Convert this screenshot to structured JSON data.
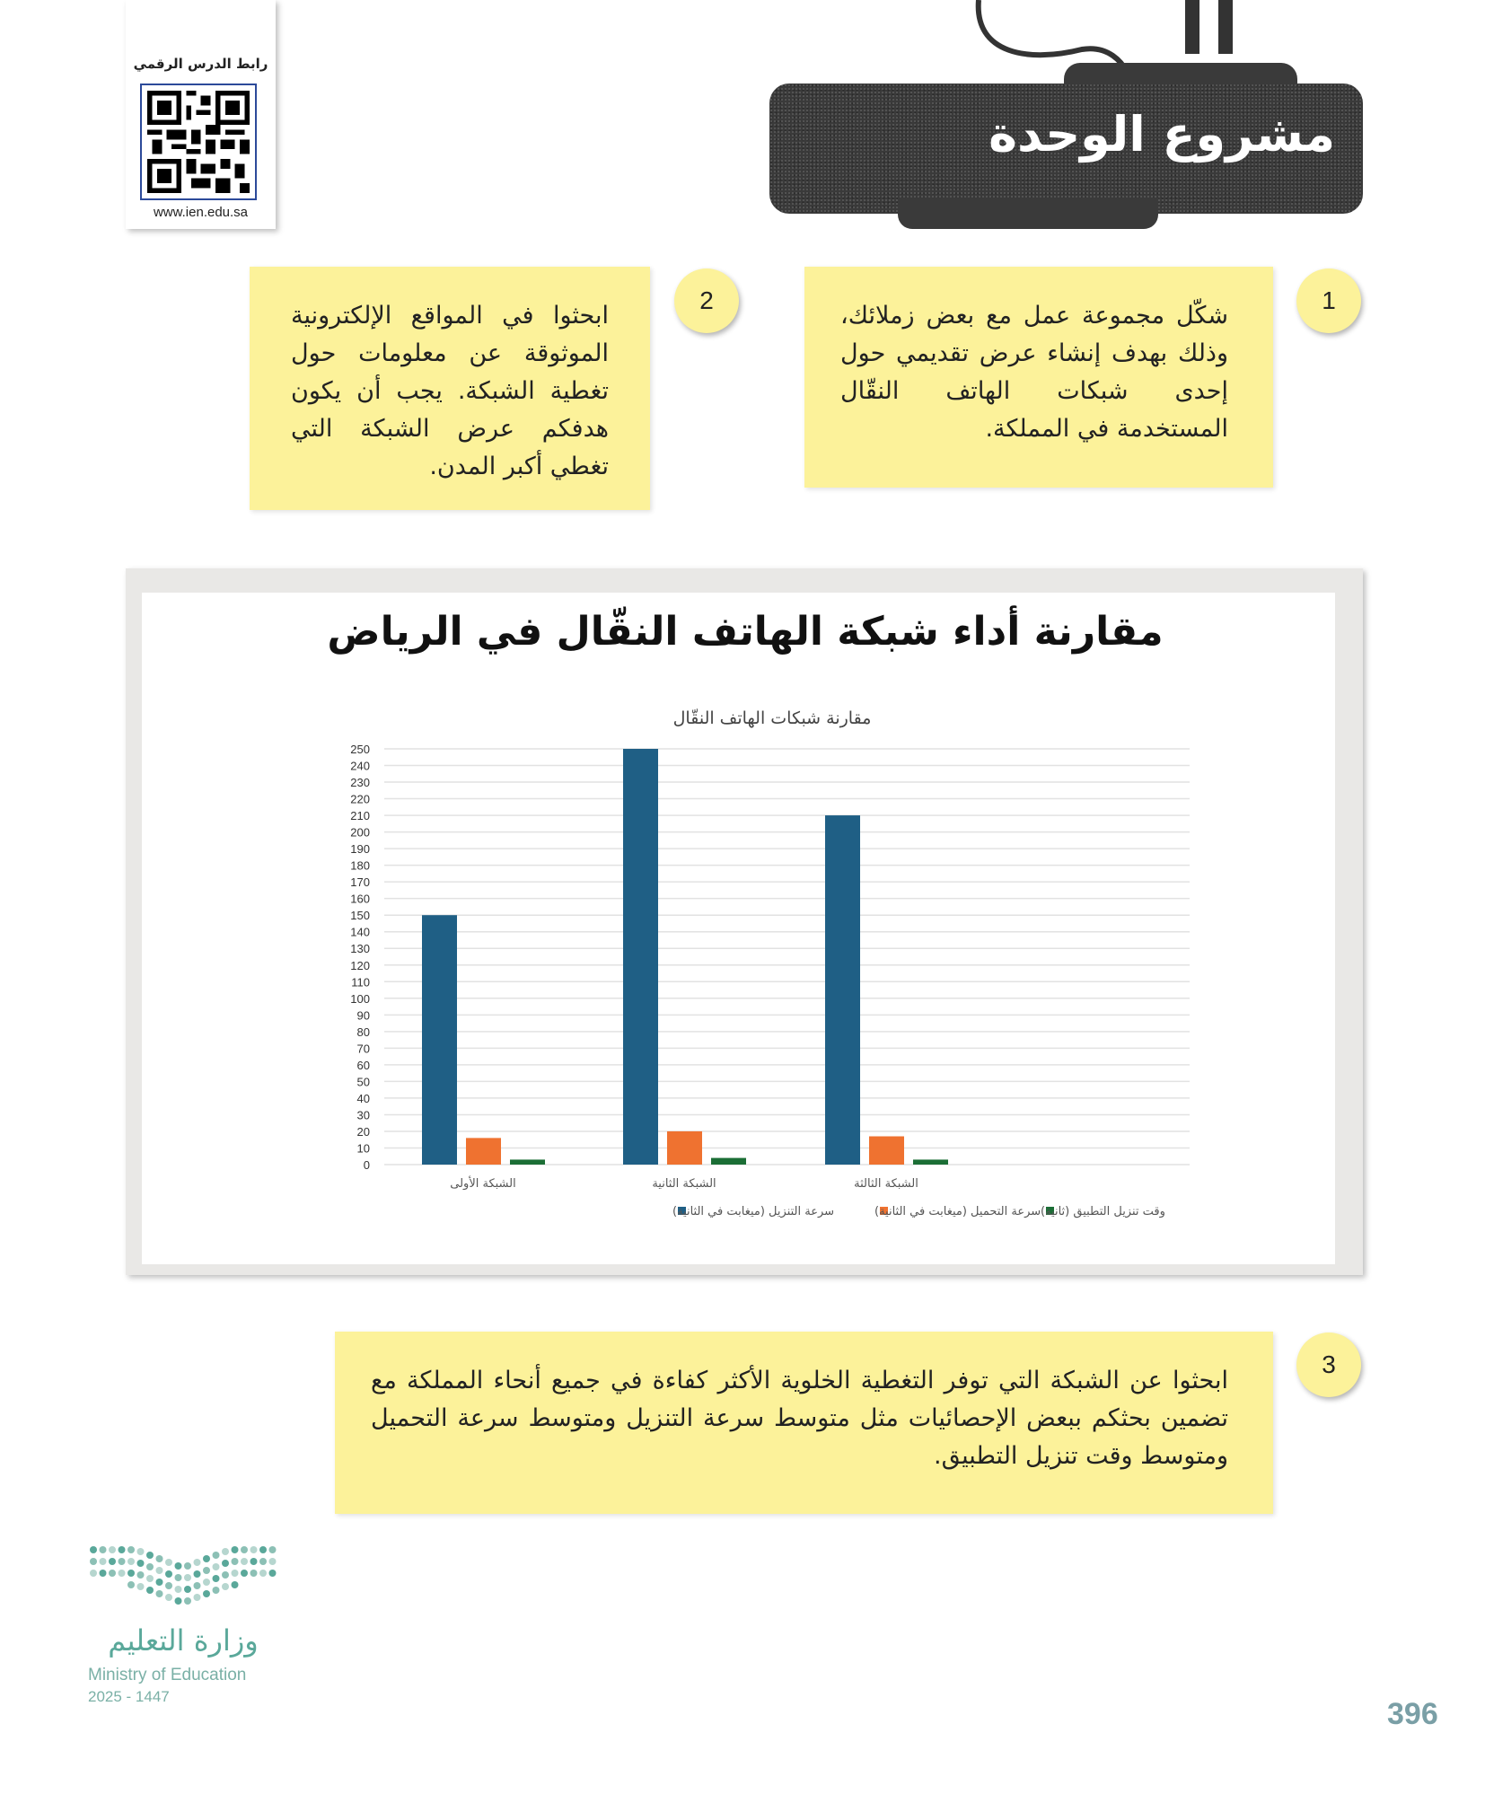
{
  "qr": {
    "label": "رابط الدرس الرقمي",
    "url": "www.ien.edu.sa"
  },
  "header": {
    "title": "مشروع الوحدة"
  },
  "steps": [
    {
      "number": "1",
      "text": "شكّل مجموعة عمل مع بعض زملائك، وذلك بهدف إنشاء عرض تقديمي حول إحدى شبكات الهاتف النقّال المستخدمة في المملكة."
    },
    {
      "number": "2",
      "text": "ابحثوا في المواقع الإلكترونية الموثوقة عن معلومات حول تغطية الشبكة. يجب أن يكون هدفكم عرض الشبكة التي تغطي أكبر المدن."
    },
    {
      "number": "3",
      "text": "ابحثوا عن الشبكة التي توفر التغطية الخلوية الأكثر كفاءة في جميع أنحاء المملكة مع تضمين بحثكم ببعض الإحصائيات مثل متوسط سرعة التنزيل ومتوسط سرعة التحميل ومتوسط وقت تنزيل التطبيق."
    }
  ],
  "chart_data": {
    "type": "bar",
    "title": "مقارنة أداء شبكة الهاتف النقّال في الرياض",
    "subtitle": "مقارنة شبكات الهاتف النقّال",
    "categories": [
      "الشبكة الأولى",
      "الشبكة الثانية",
      "الشبكة الثالثة"
    ],
    "series": [
      {
        "name": "سرعة التنزيل (ميغابت في الثانية)",
        "values": [
          150,
          250,
          210
        ],
        "color": "#1f5f85"
      },
      {
        "name": "سرعة التحميل (ميغابت في الثانية)",
        "values": [
          16,
          20,
          17
        ],
        "color": "#ef7230"
      },
      {
        "name": "وقت تنزيل التطبيق (ثانية)",
        "values": [
          3,
          4,
          3
        ],
        "color": "#1b6e35"
      }
    ],
    "ylim": [
      0,
      250
    ],
    "yticks": [
      0,
      10,
      20,
      30,
      40,
      50,
      60,
      70,
      80,
      90,
      100,
      110,
      120,
      130,
      140,
      150,
      160,
      170,
      180,
      190,
      200,
      210,
      220,
      230,
      240,
      250
    ],
    "grid": true,
    "legend": "bottom"
  },
  "footer": {
    "ministry_ar": "وزارة التعليم",
    "ministry_en": "Ministry of Education",
    "year": "2025 - 1447",
    "page_number": "396"
  }
}
